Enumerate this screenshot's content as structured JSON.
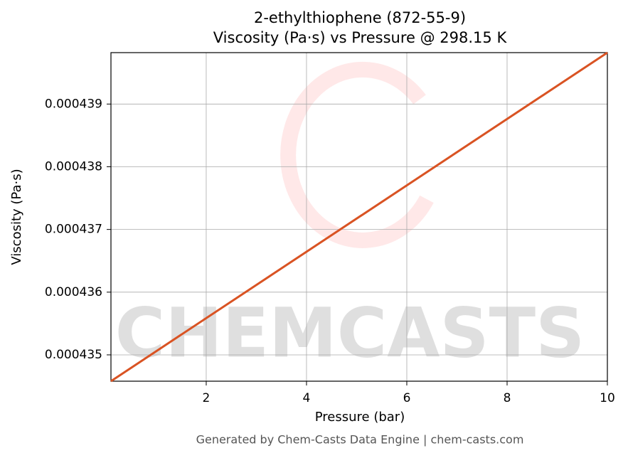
{
  "chart_data": {
    "type": "line",
    "title": "2-ethylthiophene (872-55-9)",
    "subtitle": "Viscosity (Pa·s) vs Pressure @ 298.15 K",
    "x_label": "Pressure (bar)",
    "y_label": "Viscosity (Pa·s)",
    "footer": "Generated by Chem-Casts Data Engine | chem-casts.com",
    "watermark": "CHEMCASTS",
    "x": [
      0.1,
      10
    ],
    "series": [
      {
        "name": "Viscosity",
        "color": "#d95323",
        "values": [
          0.00043458,
          0.00043982
        ]
      }
    ],
    "xlim": [
      0.1,
      10
    ],
    "xticks": [
      2,
      4,
      6,
      8,
      10
    ],
    "ylim": [
      0.00043458,
      0.00043982
    ],
    "yticks": [
      0.000435,
      0.000436,
      0.000437,
      0.000438,
      0.000439
    ],
    "grid": true
  }
}
